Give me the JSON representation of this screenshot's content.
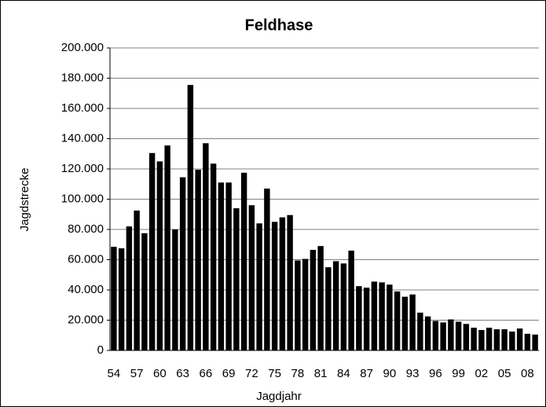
{
  "chart_data": {
    "type": "bar",
    "title": "Feldhase",
    "x_label": "Jagdjahr",
    "y_label": "Jagdstrecke",
    "categories": [
      "54",
      null,
      null,
      "57",
      null,
      null,
      "60",
      null,
      null,
      "63",
      null,
      null,
      "66",
      null,
      null,
      "69",
      null,
      null,
      "72",
      null,
      null,
      "75",
      null,
      null,
      "78",
      null,
      null,
      "81",
      null,
      null,
      "84",
      null,
      null,
      "87",
      null,
      null,
      "90",
      null,
      null,
      "93",
      null,
      null,
      "96",
      null,
      null,
      "99",
      null,
      null,
      "02",
      null,
      null,
      "05",
      null,
      null,
      "08",
      null
    ],
    "values": [
      68500,
      67500,
      82000,
      92500,
      77500,
      130500,
      125000,
      135500,
      80000,
      114500,
      175500,
      119500,
      137000,
      123500,
      111000,
      111000,
      94000,
      117500,
      96000,
      84000,
      107000,
      85000,
      88000,
      89500,
      59500,
      60500,
      66500,
      69000,
      55000,
      59000,
      57500,
      66000,
      42500,
      41500,
      45500,
      45000,
      43500,
      39000,
      35500,
      37000,
      25000,
      22500,
      19500,
      18500,
      20500,
      19000,
      17500,
      15000,
      13500,
      15000,
      14000,
      14000,
      12500,
      14500,
      11000,
      10500
    ],
    "color": "#000000",
    "ylim": [
      0,
      200000
    ],
    "yticks": [
      0,
      {
        "value": 20000,
        "label": "20.000"
      },
      {
        "value": 40000,
        "label": "40.000"
      },
      {
        "value": 60000,
        "label": "60.000"
      },
      {
        "value": 80000,
        "label": "80.000"
      },
      {
        "value": 100000,
        "label": "100.000"
      },
      {
        "value": 120000,
        "label": "120.000"
      },
      {
        "value": 140000,
        "label": "140.000"
      },
      {
        "value": 160000,
        "label": "160.000"
      },
      {
        "value": 180000,
        "label": "180.000"
      },
      {
        "value": 200000,
        "label": "200.000"
      }
    ],
    "grid": true
  }
}
